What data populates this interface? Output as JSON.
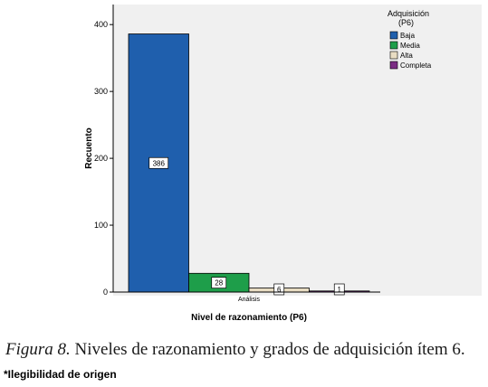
{
  "chart_data": {
    "type": "bar",
    "title": "",
    "xlabel": "Nivel de razonamiento (P6)",
    "ylabel": "Recuento",
    "ylim": [
      0,
      430
    ],
    "yticks": [
      0,
      100,
      200,
      300,
      400
    ],
    "grid": false,
    "categories": [
      "Análisis"
    ],
    "legend": {
      "title_line1": "Adquisición",
      "title_line2": "(P6)",
      "placement": "right"
    },
    "series": [
      {
        "name": "Baja",
        "values": [
          386
        ],
        "color": "#1f5fad"
      },
      {
        "name": "Media",
        "values": [
          28
        ],
        "color": "#1e9e4a"
      },
      {
        "name": "Alta",
        "values": [
          6
        ],
        "color": "#e8dcc2"
      },
      {
        "name": "Completa",
        "values": [
          1
        ],
        "color": "#7b2c83"
      }
    ],
    "data_labels": [
      "386",
      "28",
      "6",
      "1"
    ]
  },
  "caption": {
    "prefix": "Figura 8.",
    "text": " Niveles de razonamiento y grados de adquisición ítem 6."
  },
  "note": "*Ilegibilidad de origen"
}
